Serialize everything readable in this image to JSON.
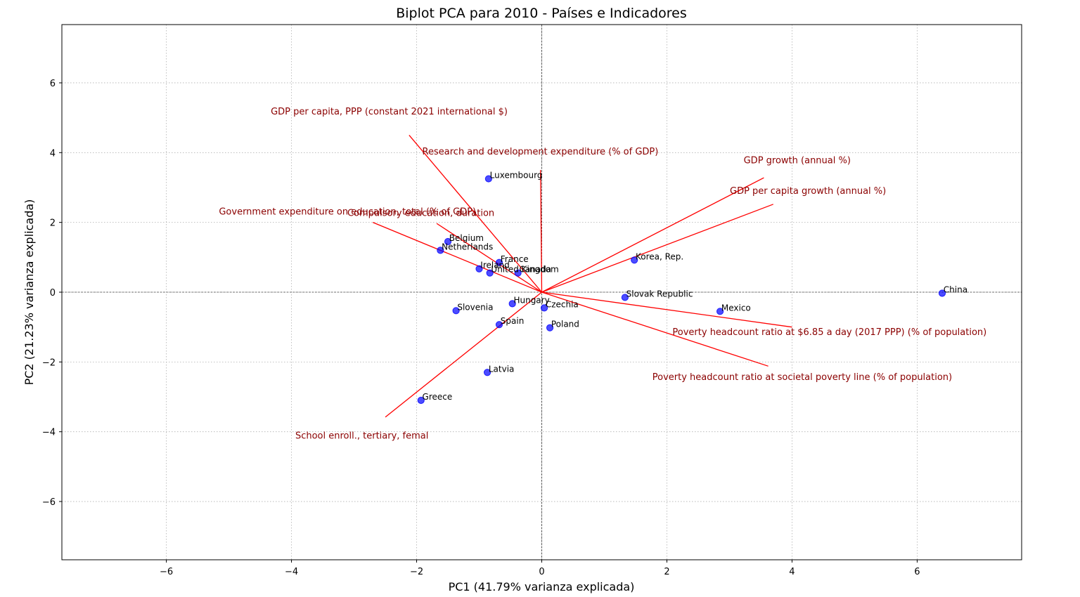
{
  "chart_data": {
    "type": "scatter",
    "title": "Biplot PCA para 2010 - Países e Indicadores",
    "xlabel": "PC1 (41.79% varianza explicada)",
    "ylabel": "PC2 (21.23% varianza explicada)",
    "xlim": [
      -7.67,
      7.67
    ],
    "ylim": [
      -7.67,
      7.67
    ],
    "xticks": [
      -6,
      -4,
      -2,
      0,
      2,
      4,
      6
    ],
    "yticks": [
      -6,
      -4,
      -2,
      0,
      2,
      4,
      6
    ],
    "xtick_labels": [
      "−6",
      "−4",
      "−2",
      "0",
      "2",
      "4",
      "6"
    ],
    "ytick_labels": [
      "−6",
      "−4",
      "−2",
      "0",
      "2",
      "4",
      "6"
    ],
    "grid": true,
    "point_color": "#0000ff",
    "vector_color": "#ff0000",
    "vector_label_color": "#8b0000",
    "points": [
      {
        "label": "Luxembourg",
        "x": -0.85,
        "y": 3.25
      },
      {
        "label": "Belgium",
        "x": -1.5,
        "y": 1.45
      },
      {
        "label": "Netherlands",
        "x": -1.62,
        "y": 1.2
      },
      {
        "label": "France",
        "x": -0.68,
        "y": 0.85
      },
      {
        "label": "Ireland",
        "x": -1.0,
        "y": 0.67
      },
      {
        "label": "United Kingdom",
        "x": -0.83,
        "y": 0.55
      },
      {
        "label": "Canada",
        "x": -0.38,
        "y": 0.55
      },
      {
        "label": "Korea, Rep.",
        "x": 1.48,
        "y": 0.92
      },
      {
        "label": "China",
        "x": 6.4,
        "y": -0.03
      },
      {
        "label": "Slovak Republic",
        "x": 1.33,
        "y": -0.15
      },
      {
        "label": "Hungary",
        "x": -0.47,
        "y": -0.33
      },
      {
        "label": "Czechia",
        "x": 0.04,
        "y": -0.45
      },
      {
        "label": "Slovenia",
        "x": -1.37,
        "y": -0.53
      },
      {
        "label": "Mexico",
        "x": 2.85,
        "y": -0.55
      },
      {
        "label": "Spain",
        "x": -0.68,
        "y": -0.93
      },
      {
        "label": "Poland",
        "x": 0.13,
        "y": -1.02
      },
      {
        "label": "Latvia",
        "x": -0.87,
        "y": -2.3
      },
      {
        "label": "Greece",
        "x": -1.93,
        "y": -3.1
      }
    ],
    "vectors": [
      {
        "label": "GDP per capita, PPP (constant 2021 international $)",
        "x": -2.12,
        "y": 4.5
      },
      {
        "label": "Research and development expenditure (% of GDP)",
        "x": -0.02,
        "y": 3.5
      },
      {
        "label": "GDP growth (annual %)",
        "x": 3.55,
        "y": 3.28
      },
      {
        "label": "GDP per capita growth (annual %)",
        "x": 3.7,
        "y": 2.52
      },
      {
        "label": "Government expenditure on education, total (% of GDP)",
        "x": -2.7,
        "y": 2.0
      },
      {
        "label": "Compulsory education, duration",
        "x": -1.68,
        "y": 1.97
      },
      {
        "label": "Poverty headcount ratio at $6.85 a day (2017 PPP) (% of population)",
        "x": 4.0,
        "y": -1.0
      },
      {
        "label": "Poverty headcount ratio at societal poverty line (% of population)",
        "x": 3.62,
        "y": -2.12
      },
      {
        "label": "School enroll., tertiary, femal",
        "x": -2.5,
        "y": -3.58
      }
    ]
  }
}
